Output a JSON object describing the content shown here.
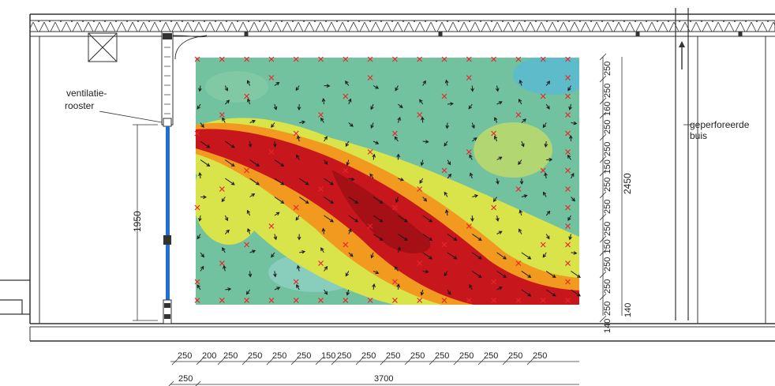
{
  "labels": {
    "ventilation_grille_line1": "ventilatie-",
    "ventilation_grille_line2": "rooster",
    "perforated_pipe_line1": "geperforeerde",
    "perforated_pipe_line2": "buis",
    "window_height": "1950",
    "total_height": "2450",
    "total_width": "3700",
    "offset_width": "250"
  },
  "bottom_dims": [
    "250",
    "200",
    "250",
    "250",
    "250",
    "250",
    "150",
    "250",
    "250",
    "250",
    "250",
    "250",
    "250",
    "250",
    "250",
    "250"
  ],
  "right_dims": [
    "250",
    "250",
    "160",
    "250",
    "250",
    "150",
    "250",
    "250",
    "250",
    "150",
    "250",
    "250",
    "250",
    "140"
  ],
  "right_dim_extra": "140",
  "colors": {
    "flow_high": "#c8161d",
    "flow_mid": "#f19a1f",
    "flow_low": "#d9e34a",
    "flow_base": "#72c2a0",
    "flow_cold": "#58b9d4",
    "measure_point": "#e8262a",
    "window_glass": "#1f6fd6",
    "wall": "#333333"
  },
  "icons": [
    "ventilation-duct-icon",
    "airflow-arrow-icon",
    "measurement-cross-icon"
  ]
}
